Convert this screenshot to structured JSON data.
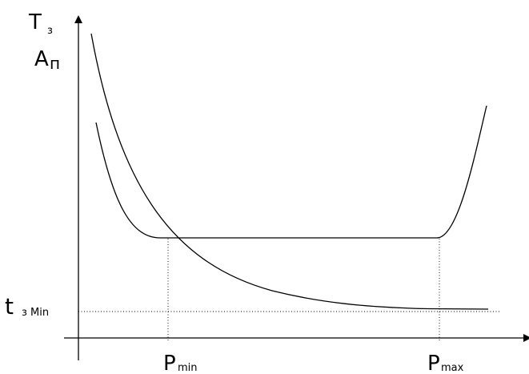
{
  "diagram": {
    "y_axis_label_top": "T",
    "y_axis_label_top_sub": "з",
    "y_axis_label_bottom": "А",
    "y_axis_label_bottom_sub": "п",
    "t_min_label": "t",
    "t_min_sub": "з Min",
    "p_min_label": "P",
    "p_min_sub": "min",
    "p_max_label": "P",
    "p_max_sub": "max",
    "colors": {
      "line": "#000000",
      "background": "#ffffff"
    }
  }
}
